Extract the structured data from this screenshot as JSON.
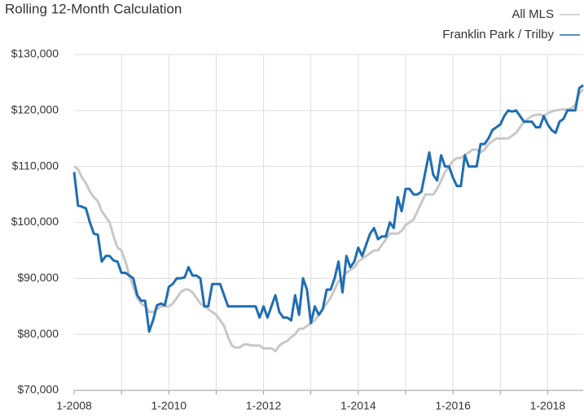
{
  "chart_data": {
    "type": "line",
    "title": "Rolling 12-Month Calculation",
    "categories": [
      "1-2008",
      null,
      null,
      null,
      null,
      null,
      null,
      null,
      null,
      null,
      null,
      null,
      null,
      null,
      null,
      null,
      null,
      null,
      null,
      null,
      null,
      null,
      null,
      null,
      "1-2010",
      null,
      null,
      null,
      null,
      null,
      null,
      null,
      null,
      null,
      null,
      null,
      null,
      null,
      null,
      null,
      null,
      null,
      null,
      null,
      null,
      null,
      null,
      null,
      "1-2012",
      null,
      null,
      null,
      null,
      null,
      null,
      null,
      null,
      null,
      null,
      null,
      null,
      null,
      null,
      null,
      null,
      null,
      null,
      null,
      null,
      null,
      null,
      null,
      "1-2014",
      null,
      null,
      null,
      null,
      null,
      null,
      null,
      null,
      null,
      null,
      null,
      null,
      null,
      null,
      null,
      null,
      null,
      null,
      null,
      null,
      null,
      null,
      null,
      "1-2016",
      null,
      null,
      null,
      null,
      null,
      null,
      null,
      null,
      null,
      null,
      null,
      null,
      null,
      null,
      null,
      null,
      null,
      null,
      null,
      null,
      null,
      null,
      null,
      "1-2018",
      null,
      null,
      null,
      null,
      null,
      null,
      null,
      null,
      null
    ],
    "series": [
      {
        "name": "All MLS",
        "color": "#c8c8c8",
        "values": [
          110000,
          109500,
          108000,
          107000,
          105500,
          104500,
          103800,
          102000,
          101000,
          100000,
          97500,
          95500,
          95000,
          93000,
          90500,
          88500,
          86500,
          85500,
          85000,
          84000,
          84000,
          84500,
          85000,
          85000,
          85000,
          85500,
          86500,
          87500,
          88000,
          88000,
          87500,
          86500,
          85500,
          85000,
          84500,
          84000,
          83500,
          82500,
          81500,
          79500,
          78000,
          77600,
          77700,
          78200,
          78200,
          78000,
          78000,
          78000,
          77500,
          77500,
          77500,
          77000,
          78000,
          78500,
          78800,
          79500,
          80000,
          81000,
          81000,
          81500,
          82000,
          82500,
          83500,
          84500,
          85500,
          86500,
          88000,
          89500,
          90000,
          91000,
          91500,
          92000,
          93000,
          93500,
          94000,
          94500,
          95000,
          95000,
          96000,
          97000,
          98000,
          98000,
          98000,
          98500,
          99500,
          100000,
          100500,
          102000,
          103500,
          105000,
          105000,
          105000,
          106000,
          107500,
          109000,
          110000,
          111000,
          111500,
          111500,
          112000,
          112500,
          113000,
          113000,
          112500,
          113000,
          114000,
          114500,
          115000,
          115000,
          115000,
          115000,
          115500,
          116000,
          117000,
          118000,
          118500,
          119000,
          119200,
          119300,
          119000,
          119500,
          119800,
          120000,
          120100,
          120200,
          120200,
          120400,
          121000,
          123000,
          123800
        ]
      },
      {
        "name": "Franklin Park / Trilby",
        "color": "#1f6db3",
        "values": [
          109000,
          103000,
          102800,
          102500,
          100000,
          98000,
          97800,
          93000,
          94000,
          94000,
          93200,
          93000,
          91000,
          91000,
          90500,
          90000,
          87000,
          86000,
          86000,
          80500,
          82500,
          85200,
          85500,
          85200,
          88500,
          89000,
          90000,
          90000,
          90200,
          92000,
          90500,
          90500,
          90000,
          85000,
          85000,
          89000,
          89000,
          89000,
          87000,
          85000,
          85000,
          85000,
          85000,
          85000,
          85000,
          85000,
          85000,
          83000,
          85000,
          83000,
          85000,
          87000,
          84000,
          83000,
          83000,
          82500,
          87000,
          83500,
          90000,
          88000,
          82000,
          85000,
          83500,
          84500,
          88000,
          88000,
          90000,
          93000,
          87500,
          94000,
          92000,
          93000,
          95500,
          94000,
          96000,
          98000,
          99000,
          97000,
          97500,
          97500,
          100000,
          99000,
          104500,
          102000,
          106000,
          106000,
          105000,
          105000,
          105500,
          109000,
          112500,
          108500,
          107500,
          112000,
          110000,
          110000,
          108000,
          106500,
          106500,
          112000,
          110000,
          110000,
          110000,
          114000,
          114000,
          115000,
          116500,
          117000,
          117500,
          119000,
          120000,
          119800,
          120000,
          119000,
          118000,
          118000,
          118000,
          117000,
          117000,
          119000,
          117500,
          116500,
          116000,
          118000,
          118500,
          120000,
          120000,
          120000,
          124000,
          124500
        ]
      }
    ],
    "ylim": [
      70000,
      130000
    ],
    "yticks": [
      {
        "value": 70000,
        "label": "$70,000"
      },
      {
        "value": 80000,
        "label": "$80,000"
      },
      {
        "value": 90000,
        "label": "$90,000"
      },
      {
        "value": 100000,
        "label": "$100,000"
      },
      {
        "value": 110000,
        "label": "$110,000"
      },
      {
        "value": 120000,
        "label": "$120,000"
      },
      {
        "value": 130000,
        "label": "$130,000"
      }
    ],
    "grid": true
  }
}
